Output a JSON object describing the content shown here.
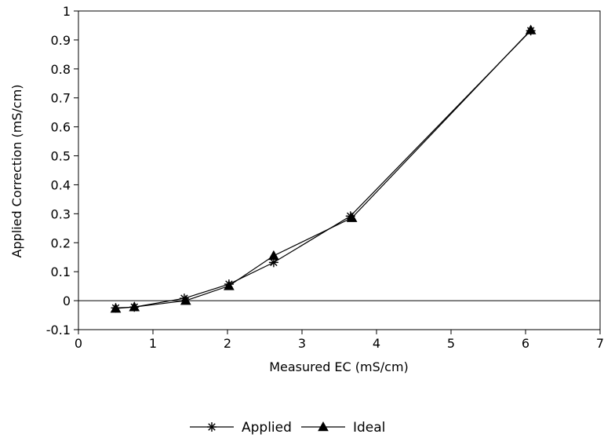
{
  "chart_data": {
    "type": "line",
    "title": "",
    "xlabel": "Measured EC (mS/cm)",
    "ylabel": "Applied Correction (mS/cm)",
    "xlim": [
      0,
      7
    ],
    "ylim": [
      -0.1,
      1
    ],
    "x_ticks": [
      "0",
      "1",
      "2",
      "3",
      "4",
      "5",
      "6",
      "7"
    ],
    "y_ticks": [
      "-0.1",
      "0",
      "0.1",
      "0.2",
      "0.3",
      "0.4",
      "0.5",
      "0.6",
      "0.7",
      "0.8",
      "0.9",
      "1"
    ],
    "zero_line": true,
    "grid": false,
    "legend_position": "bottom-center",
    "series": [
      {
        "name": "Applied",
        "marker": "asterisk",
        "color": "#000000",
        "x": [
          0.5,
          0.75,
          1.42,
          2.02,
          2.62,
          3.65,
          6.07
        ],
        "y": [
          -0.025,
          -0.022,
          0.008,
          0.057,
          0.132,
          0.292,
          0.932
        ]
      },
      {
        "name": "Ideal",
        "marker": "triangle",
        "color": "#000000",
        "x": [
          0.5,
          0.75,
          1.44,
          2.02,
          2.62,
          3.67,
          6.07
        ],
        "y": [
          -0.027,
          -0.022,
          0.0,
          0.051,
          0.155,
          0.286,
          0.934
        ]
      }
    ]
  }
}
